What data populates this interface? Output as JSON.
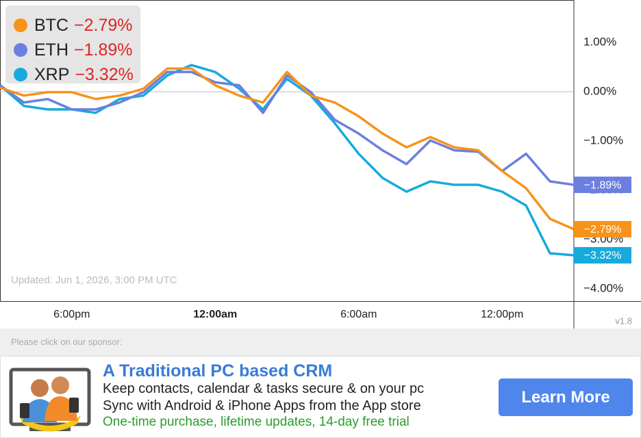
{
  "chart_data": {
    "type": "line",
    "x": [
      0,
      1,
      2,
      3,
      4,
      5,
      6,
      7,
      8,
      9,
      10,
      11,
      12,
      13,
      14,
      15,
      16,
      17,
      18,
      19,
      20,
      21,
      22,
      23,
      24
    ],
    "xlim": [
      0,
      24
    ],
    "xticks": [
      {
        "value": 3,
        "label": "6:00pm"
      },
      {
        "value": 9,
        "label": "12:00am"
      },
      {
        "value": 15,
        "label": "6:00am"
      },
      {
        "value": 21,
        "label": "12:00pm"
      }
    ],
    "ylim": [
      -4.25,
      1.86
    ],
    "yticks": [
      {
        "value": 1,
        "label": "1.00%"
      },
      {
        "value": 0,
        "label": "0.00%"
      },
      {
        "value": -1,
        "label": "−1.00%"
      },
      {
        "value": -2,
        "label": "−2.00%"
      },
      {
        "value": -3,
        "label": "−3.00%"
      },
      {
        "value": -4,
        "label": "−4.00%"
      }
    ],
    "zero_line": true,
    "legend": "top-left",
    "series": [
      {
        "name": "BTC",
        "color": "#f7931a",
        "values": [
          0.08,
          -0.08,
          -0.01,
          -0.01,
          -0.15,
          -0.08,
          0.06,
          0.47,
          0.47,
          0.13,
          -0.08,
          -0.22,
          0.4,
          -0.08,
          -0.22,
          -0.5,
          -0.85,
          -1.13,
          -0.92,
          -1.13,
          -1.19,
          -1.61,
          -1.96,
          -2.58,
          -2.79
        ],
        "value_labels": [
          null,
          null,
          null,
          null,
          null,
          null,
          null,
          null,
          null,
          null,
          null,
          null,
          null,
          null,
          null,
          null,
          null,
          null,
          null,
          null,
          null,
          null,
          null,
          null,
          "−2.79%"
        ]
      },
      {
        "name": "ETH",
        "color": "#6b7fe0",
        "values": [
          0.13,
          -0.22,
          -0.15,
          -0.36,
          -0.36,
          -0.22,
          -0.01,
          0.4,
          0.4,
          0.19,
          0.13,
          -0.43,
          0.33,
          -0.01,
          -0.57,
          -0.85,
          -1.19,
          -1.47,
          -0.99,
          -1.19,
          -1.22,
          -1.61,
          -1.26,
          -1.82,
          -1.89
        ],
        "value_labels": [
          null,
          null,
          null,
          null,
          null,
          null,
          null,
          null,
          null,
          null,
          null,
          null,
          null,
          null,
          null,
          null,
          null,
          null,
          null,
          null,
          null,
          null,
          null,
          null,
          "−1.89%"
        ]
      },
      {
        "name": "XRP",
        "color": "#17aadb",
        "values": [
          0.13,
          -0.29,
          -0.36,
          -0.36,
          -0.43,
          -0.15,
          -0.08,
          0.33,
          0.54,
          0.4,
          0.06,
          -0.36,
          0.26,
          -0.08,
          -0.64,
          -1.26,
          -1.75,
          -2.03,
          -1.82,
          -1.89,
          -1.89,
          -2.03,
          -2.31,
          -3.28,
          -3.32
        ],
        "value_labels": [
          null,
          null,
          null,
          null,
          null,
          null,
          null,
          null,
          null,
          null,
          null,
          null,
          null,
          null,
          null,
          null,
          null,
          null,
          null,
          null,
          null,
          null,
          null,
          null,
          "−3.32%"
        ]
      }
    ],
    "updated": "Updated: Jun 1, 2026, 3:00 PM UTC"
  },
  "version": "v1.8",
  "sponsor": {
    "prompt": "Please click on our sponsor:",
    "title": "A Traditional PC based CRM",
    "lines": [
      "Keep contacts, calendar & tasks secure & on your pc",
      "Sync with Android & iPhone Apps from the App store"
    ],
    "offer": "One-time purchase, lifetime updates, 14-day free trial",
    "button": "Learn More"
  }
}
